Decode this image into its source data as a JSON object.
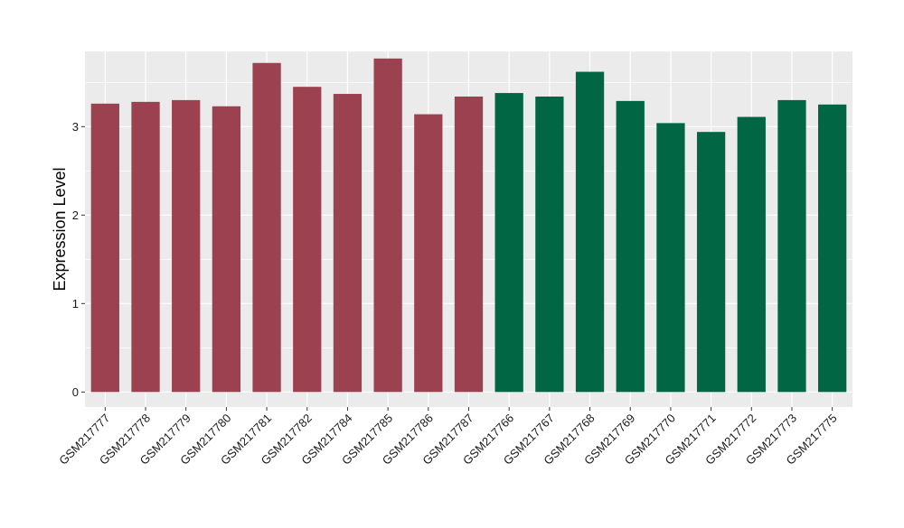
{
  "chart_data": {
    "type": "bar",
    "title": "",
    "xlabel": "",
    "ylabel": "Expression Level",
    "ylim": [
      -0.17,
      3.85
    ],
    "yticks": [
      0,
      1,
      2,
      3
    ],
    "grid": true,
    "legend": "none",
    "panel_background": "#ebebeb",
    "grid_color": "#ffffff",
    "categories": [
      "GSM217777",
      "GSM217778",
      "GSM217779",
      "GSM217780",
      "GSM217781",
      "GSM217782",
      "GSM217784",
      "GSM217785",
      "GSM217786",
      "GSM217787",
      "GSM217766",
      "GSM217767",
      "GSM217768",
      "GSM217769",
      "GSM217770",
      "GSM217771",
      "GSM217772",
      "GSM217773",
      "GSM217775"
    ],
    "values": [
      3.26,
      3.28,
      3.3,
      3.23,
      3.72,
      3.45,
      3.37,
      3.77,
      3.14,
      3.34,
      3.38,
      3.34,
      3.62,
      3.29,
      3.04,
      2.94,
      3.11,
      3.3,
      3.25
    ],
    "groups": [
      0,
      0,
      0,
      0,
      0,
      0,
      0,
      0,
      0,
      0,
      1,
      1,
      1,
      1,
      1,
      1,
      1,
      1,
      1
    ],
    "group_colors": [
      "#9b414f",
      "#006644"
    ]
  }
}
